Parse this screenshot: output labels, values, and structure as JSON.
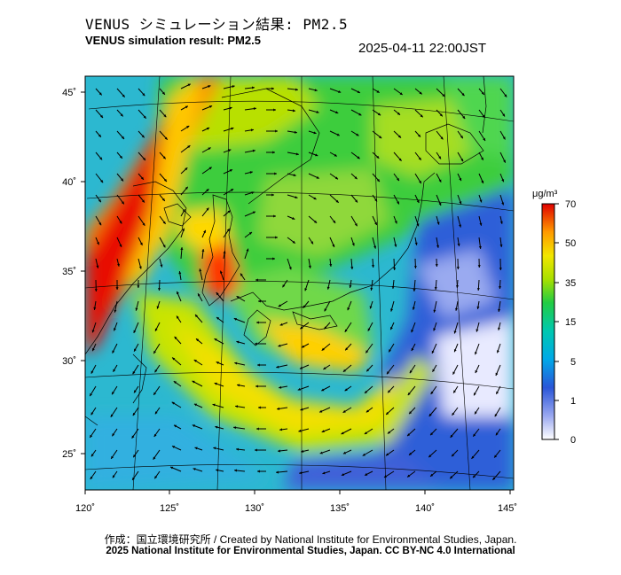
{
  "header": {
    "title_jp": "VENUS シミュレーション結果: PM2.5",
    "title_en": "VENUS simulation result: PM2.5",
    "timestamp": "2025-04-11 22:00JST"
  },
  "map": {
    "lon_range": [
      120,
      145
    ],
    "lat_range": [
      23,
      46
    ],
    "lon_ticks": [
      "120˚",
      "125˚",
      "130˚",
      "135˚",
      "140˚",
      "145˚"
    ],
    "lat_ticks": [
      "25˚",
      "30˚",
      "35˚",
      "40˚",
      "45˚"
    ],
    "field_variable": "PM2.5",
    "overlay": "wind-vectors"
  },
  "colorbar": {
    "unit": "μg/m³",
    "tick_labels": [
      "0",
      "1",
      "5",
      "15",
      "35",
      "50",
      "70"
    ],
    "colors": [
      "#ffffff",
      "#3a5fd0",
      "#00b8e8",
      "#22cc44",
      "#f2e600",
      "#ff8000",
      "#e60000"
    ]
  },
  "footer": {
    "credit_line": "作成：国立環境研究所 / Created by National Institute for Environmental Studies, Japan.",
    "license_line": "2025 National Institute for Environmental Studies, Japan. CC BY-NC 4.0 International"
  }
}
